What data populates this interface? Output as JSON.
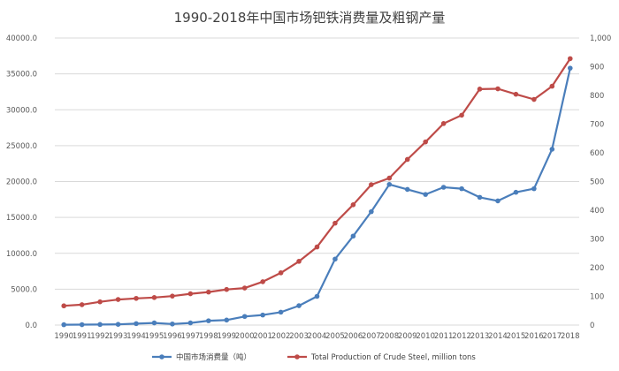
{
  "chart_data": {
    "type": "line",
    "title": "1990-2018年中国市场钯铁消费量及粗钢产量",
    "categories": [
      "1990",
      "1991",
      "1992",
      "1993",
      "1994",
      "1995",
      "1996",
      "1997",
      "1998",
      "1999",
      "2000",
      "2001",
      "2002",
      "2003",
      "2004",
      "2005",
      "2006",
      "2007",
      "2008",
      "2009",
      "2010",
      "2011",
      "2012",
      "2013",
      "2014",
      "2015",
      "2016",
      "2017",
      "2018"
    ],
    "left_axis": {
      "min": 0,
      "max": 40000,
      "ticks": [
        "0.0",
        "5000.0",
        "10000.0",
        "15000.0",
        "20000.0",
        "25000.0",
        "30000.0",
        "35000.0",
        "40000.0"
      ]
    },
    "right_axis": {
      "min": 0,
      "max": 1000,
      "ticks": [
        "0",
        "100",
        "200",
        "300",
        "400",
        "500",
        "600",
        "700",
        "800",
        "900",
        "1,000"
      ]
    },
    "grid": true,
    "legend_position": "bottom",
    "series": [
      {
        "name": "中国市场消费量（吨）",
        "axis": "left",
        "color": "#4a7ebb",
        "values": [
          50,
          60,
          80,
          100,
          200,
          300,
          150,
          300,
          600,
          700,
          1200,
          1400,
          1800,
          2700,
          4000,
          9200,
          12400,
          15800,
          19600,
          18900,
          18200,
          19200,
          19000,
          17800,
          17300,
          18500,
          19000,
          24500,
          35800
        ]
      },
      {
        "name": "Total Production of Crude Steel, million tons",
        "axis": "right",
        "color": "#be4b48",
        "values": [
          67,
          71,
          81,
          89,
          93,
          96,
          101,
          109,
          115,
          124,
          129,
          151,
          182,
          222,
          272,
          355,
          419,
          489,
          512,
          577,
          638,
          702,
          731,
          822,
          823,
          804,
          786,
          832,
          928
        ]
      }
    ]
  }
}
